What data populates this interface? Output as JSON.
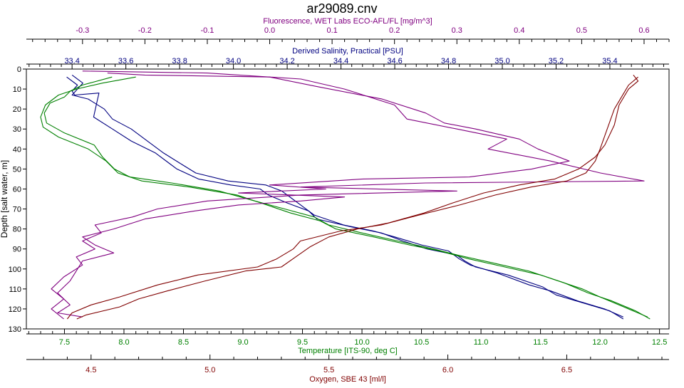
{
  "chart_data": {
    "type": "line",
    "title": "ar29089.cnv",
    "depth_axis": {
      "label": "Depth [salt water, m]",
      "range": [
        0,
        130
      ],
      "ticks": [
        0,
        10,
        20,
        30,
        40,
        50,
        60,
        70,
        80,
        90,
        100,
        110,
        120,
        130
      ],
      "inverted": true
    },
    "x_axes": [
      {
        "id": "fluorescence",
        "label": "Fluorescence, WET Labs ECO-AFL/FL [mg/m^3]",
        "position": "top-outer",
        "color": "#800080",
        "range": [
          -0.39,
          0.64
        ],
        "ticks": [
          "-0.3",
          "-0.2",
          "-0.1",
          "0.0",
          "0.1",
          "0.2",
          "0.3",
          "0.4",
          "0.5",
          "0.6"
        ]
      },
      {
        "id": "salinity",
        "label": "Derived Salinity, Practical [PSU]",
        "position": "top-inner",
        "color": "#000080",
        "range": [
          33.23,
          35.62
        ],
        "ticks": [
          "33.4",
          "33.6",
          "33.8",
          "34.0",
          "34.2",
          "34.4",
          "34.6",
          "34.8",
          "35.0",
          "35.2",
          "35.4"
        ]
      },
      {
        "id": "temperature",
        "label": "Temperature [ITS-90, deg C]",
        "position": "bottom-inner",
        "color": "#008000",
        "range": [
          7.18,
          12.58
        ],
        "ticks": [
          "7.5",
          "8.0",
          "8.5",
          "9.0",
          "9.5",
          "10.0",
          "10.5",
          "11.0",
          "11.5",
          "12.0",
          "12.5"
        ]
      },
      {
        "id": "oxygen",
        "label": "Oxygen, SBE 43 [ml/l]",
        "position": "bottom-outer",
        "color": "#800000",
        "range": [
          4.228,
          6.93
        ],
        "ticks": [
          "4.5",
          "5.0",
          "5.5",
          "6.0",
          "6.5"
        ]
      }
    ],
    "series": [
      {
        "axis": "salinity",
        "color": "#000080",
        "points": [
          [
            33.38,
            4
          ],
          [
            33.42,
            8
          ],
          [
            33.4,
            11
          ],
          [
            33.41,
            13
          ],
          [
            33.5,
            12
          ],
          [
            33.49,
            18
          ],
          [
            33.48,
            24
          ],
          [
            33.55,
            30
          ],
          [
            33.62,
            36
          ],
          [
            33.71,
            42
          ],
          [
            33.76,
            47
          ],
          [
            33.79,
            50
          ],
          [
            33.87,
            55
          ],
          [
            33.99,
            58
          ],
          [
            34.1,
            60
          ],
          [
            34.13,
            63
          ],
          [
            34.2,
            67
          ],
          [
            34.28,
            71
          ],
          [
            34.31,
            75
          ],
          [
            34.44,
            79
          ],
          [
            34.55,
            82
          ],
          [
            34.63,
            86
          ],
          [
            34.72,
            90
          ],
          [
            34.83,
            93
          ],
          [
            34.86,
            96
          ],
          [
            34.9,
            99
          ],
          [
            35.02,
            103
          ],
          [
            35.15,
            109
          ],
          [
            35.2,
            113
          ],
          [
            35.3,
            117
          ],
          [
            35.4,
            121
          ],
          [
            35.45,
            125
          ]
        ]
      },
      {
        "axis": "salinity",
        "color": "#000080",
        "points": [
          [
            33.4,
            3
          ],
          [
            33.44,
            7
          ],
          [
            33.42,
            10
          ],
          [
            33.4,
            13
          ],
          [
            33.46,
            15
          ],
          [
            33.52,
            20
          ],
          [
            33.55,
            25
          ],
          [
            33.62,
            30
          ],
          [
            33.68,
            36
          ],
          [
            33.74,
            42
          ],
          [
            33.8,
            47
          ],
          [
            33.86,
            52
          ],
          [
            33.98,
            56
          ],
          [
            34.12,
            58
          ],
          [
            34.18,
            61
          ],
          [
            34.22,
            65
          ],
          [
            34.26,
            69
          ],
          [
            34.3,
            73
          ],
          [
            34.41,
            78
          ],
          [
            34.52,
            81
          ],
          [
            34.6,
            84
          ],
          [
            34.7,
            88
          ],
          [
            34.8,
            91
          ],
          [
            34.84,
            95
          ],
          [
            34.88,
            98
          ],
          [
            34.98,
            102
          ],
          [
            35.1,
            108
          ],
          [
            35.18,
            111
          ],
          [
            35.28,
            116
          ],
          [
            35.38,
            120
          ],
          [
            35.45,
            124
          ]
        ]
      },
      {
        "axis": "temperature",
        "color": "#008000",
        "points": [
          [
            7.9,
            4
          ],
          [
            7.65,
            8
          ],
          [
            7.55,
            11
          ],
          [
            7.5,
            14
          ],
          [
            7.38,
            17
          ],
          [
            7.33,
            22
          ],
          [
            7.35,
            27
          ],
          [
            7.5,
            32
          ],
          [
            7.75,
            38
          ],
          [
            7.82,
            44
          ],
          [
            7.92,
            50
          ],
          [
            8.05,
            54
          ],
          [
            8.4,
            57
          ],
          [
            8.8,
            61
          ],
          [
            9.1,
            66
          ],
          [
            9.35,
            70
          ],
          [
            9.6,
            74
          ],
          [
            9.72,
            78
          ],
          [
            10.0,
            82
          ],
          [
            10.3,
            86
          ],
          [
            10.6,
            90
          ],
          [
            10.8,
            93
          ],
          [
            11.1,
            97
          ],
          [
            11.4,
            101
          ],
          [
            11.6,
            105
          ],
          [
            11.85,
            110
          ],
          [
            12.0,
            114
          ],
          [
            12.2,
            119
          ],
          [
            12.4,
            124
          ]
        ]
      },
      {
        "axis": "temperature",
        "color": "#008000",
        "points": [
          [
            8.1,
            4
          ],
          [
            7.82,
            7
          ],
          [
            7.6,
            10
          ],
          [
            7.45,
            13
          ],
          [
            7.34,
            18
          ],
          [
            7.3,
            24
          ],
          [
            7.32,
            29
          ],
          [
            7.45,
            34
          ],
          [
            7.7,
            40
          ],
          [
            7.85,
            46
          ],
          [
            7.95,
            52
          ],
          [
            8.15,
            56
          ],
          [
            8.55,
            59
          ],
          [
            8.95,
            63
          ],
          [
            9.2,
            68
          ],
          [
            9.4,
            72
          ],
          [
            9.65,
            76
          ],
          [
            9.78,
            80
          ],
          [
            10.1,
            84
          ],
          [
            10.4,
            88
          ],
          [
            10.65,
            91
          ],
          [
            10.9,
            95
          ],
          [
            11.2,
            99
          ],
          [
            11.5,
            103
          ],
          [
            11.7,
            107
          ],
          [
            11.9,
            112
          ],
          [
            12.1,
            116
          ],
          [
            12.3,
            121
          ],
          [
            12.42,
            125
          ]
        ]
      },
      {
        "axis": "fluorescence",
        "color": "#800080",
        "points": [
          [
            -0.26,
            2
          ],
          [
            -0.2,
            3
          ],
          [
            0.0,
            4
          ],
          [
            0.08,
            9
          ],
          [
            0.18,
            15
          ],
          [
            0.25,
            22
          ],
          [
            0.28,
            27
          ],
          [
            0.33,
            30
          ],
          [
            0.4,
            35
          ],
          [
            0.43,
            40
          ],
          [
            0.48,
            46
          ],
          [
            0.42,
            50
          ],
          [
            0.32,
            54
          ],
          [
            0.15,
            55
          ],
          [
            0.0,
            58
          ],
          [
            0.09,
            60
          ],
          [
            -0.05,
            62
          ],
          [
            0.12,
            64
          ],
          [
            0.05,
            66
          ],
          [
            -0.05,
            68
          ],
          [
            -0.12,
            71
          ],
          [
            -0.2,
            75
          ],
          [
            -0.25,
            80
          ],
          [
            -0.3,
            84
          ],
          [
            -0.28,
            88
          ],
          [
            -0.25,
            92
          ],
          [
            -0.3,
            96
          ],
          [
            -0.31,
            101
          ],
          [
            -0.32,
            106
          ],
          [
            -0.34,
            112
          ],
          [
            -0.32,
            118
          ],
          [
            -0.34,
            122
          ],
          [
            -0.3,
            124
          ]
        ]
      },
      {
        "axis": "fluorescence",
        "color": "#800080",
        "points": [
          [
            -0.3,
            1
          ],
          [
            -0.1,
            2
          ],
          [
            0.05,
            5
          ],
          [
            0.12,
            10
          ],
          [
            0.2,
            18
          ],
          [
            0.22,
            25
          ],
          [
            0.3,
            30
          ],
          [
            0.38,
            35
          ],
          [
            0.35,
            40
          ],
          [
            0.45,
            46
          ],
          [
            0.53,
            52
          ],
          [
            0.6,
            56
          ],
          [
            0.25,
            57
          ],
          [
            0.05,
            59
          ],
          [
            0.3,
            61
          ],
          [
            0.05,
            63
          ],
          [
            -0.1,
            66
          ],
          [
            -0.18,
            70
          ],
          [
            -0.22,
            74
          ],
          [
            -0.28,
            78
          ],
          [
            -0.27,
            82
          ],
          [
            -0.3,
            86
          ],
          [
            -0.28,
            90
          ],
          [
            -0.31,
            94
          ],
          [
            -0.3,
            98
          ],
          [
            -0.33,
            104
          ],
          [
            -0.35,
            110
          ],
          [
            -0.33,
            115
          ],
          [
            -0.35,
            120
          ],
          [
            -0.33,
            125
          ]
        ]
      },
      {
        "axis": "oxygen",
        "color": "#800000",
        "points": [
          [
            6.8,
            4
          ],
          [
            6.76,
            8
          ],
          [
            6.74,
            12
          ],
          [
            6.7,
            20
          ],
          [
            6.67,
            30
          ],
          [
            6.64,
            40
          ],
          [
            6.62,
            46
          ],
          [
            6.58,
            52
          ],
          [
            6.5,
            56
          ],
          [
            6.35,
            59
          ],
          [
            6.2,
            63
          ],
          [
            6.05,
            68
          ],
          [
            5.88,
            73
          ],
          [
            5.72,
            78
          ],
          [
            5.55,
            81
          ],
          [
            5.38,
            86
          ],
          [
            5.35,
            90
          ],
          [
            5.28,
            95
          ],
          [
            5.2,
            99
          ],
          [
            4.95,
            103
          ],
          [
            4.78,
            108
          ],
          [
            4.62,
            114
          ],
          [
            4.5,
            118
          ],
          [
            4.42,
            122
          ],
          [
            4.4,
            125
          ]
        ]
      },
      {
        "axis": "oxygen",
        "color": "#800000",
        "points": [
          [
            6.78,
            3
          ],
          [
            6.8,
            6
          ],
          [
            6.76,
            10
          ],
          [
            6.72,
            18
          ],
          [
            6.7,
            28
          ],
          [
            6.66,
            38
          ],
          [
            6.62,
            44
          ],
          [
            6.55,
            50
          ],
          [
            6.45,
            55
          ],
          [
            6.3,
            58
          ],
          [
            6.15,
            62
          ],
          [
            6.02,
            67
          ],
          [
            5.9,
            72
          ],
          [
            5.75,
            77
          ],
          [
            5.62,
            80
          ],
          [
            5.5,
            84
          ],
          [
            5.42,
            89
          ],
          [
            5.36,
            94
          ],
          [
            5.3,
            99
          ],
          [
            5.15,
            101
          ],
          [
            4.98,
            106
          ],
          [
            4.82,
            111
          ],
          [
            4.7,
            115
          ],
          [
            4.62,
            119
          ],
          [
            4.48,
            123
          ],
          [
            4.44,
            125
          ]
        ]
      }
    ]
  }
}
